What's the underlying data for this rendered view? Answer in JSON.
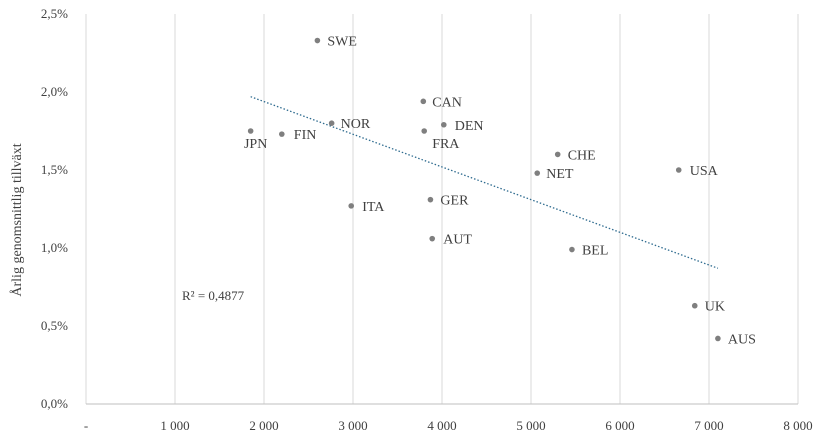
{
  "chart_data": {
    "type": "scatter",
    "title": "",
    "xlabel": "",
    "ylabel": "Årlig genomsnittlig tillväxt",
    "xlim": [
      0,
      8000
    ],
    "ylim": [
      0,
      0.025
    ],
    "x_tick_values": [
      0,
      1000,
      2000,
      3000,
      4000,
      5000,
      6000,
      7000,
      8000
    ],
    "x_tick_labels": [
      "-",
      "1 000",
      "2 000",
      "3 000",
      "4 000",
      "5 000",
      "6 000",
      "7 000",
      "8 000"
    ],
    "y_tick_values": [
      0,
      0.005,
      0.01,
      0.015,
      0.02,
      0.025
    ],
    "y_tick_labels": [
      "0,0%",
      "0,5%",
      "1,0%",
      "1,5%",
      "2,0%",
      "2,5%"
    ],
    "grid": "vertical",
    "point_color": "#7f7f7f",
    "trendline_color": "#2e6b8f",
    "points": [
      {
        "label": "SWE",
        "x": 2600,
        "y": 0.0233
      },
      {
        "label": "CAN",
        "x": 3790,
        "y": 0.0194
      },
      {
        "label": "NOR",
        "x": 2760,
        "y": 0.018
      },
      {
        "label": "DEN",
        "x": 4020,
        "y": 0.0179
      },
      {
        "label": "FRA",
        "x": 3800,
        "y": 0.0175
      },
      {
        "label": "FIN",
        "x": 2200,
        "y": 0.0173
      },
      {
        "label": "JPN",
        "x": 1850,
        "y": 0.0175
      },
      {
        "label": "CHE",
        "x": 5300,
        "y": 0.016
      },
      {
        "label": "NET",
        "x": 5070,
        "y": 0.0148
      },
      {
        "label": "USA",
        "x": 6660,
        "y": 0.015
      },
      {
        "label": "ITA",
        "x": 2980,
        "y": 0.0127
      },
      {
        "label": "GER",
        "x": 3870,
        "y": 0.0131
      },
      {
        "label": "AUT",
        "x": 3890,
        "y": 0.0106
      },
      {
        "label": "BEL",
        "x": 5460,
        "y": 0.0099
      },
      {
        "label": "UK",
        "x": 6840,
        "y": 0.0063
      },
      {
        "label": "AUS",
        "x": 7100,
        "y": 0.0042
      }
    ],
    "trendline": {
      "x": [
        1850,
        7100
      ],
      "y": [
        0.0197,
        0.0087
      ]
    },
    "annotation": "R² = 0,4877"
  }
}
